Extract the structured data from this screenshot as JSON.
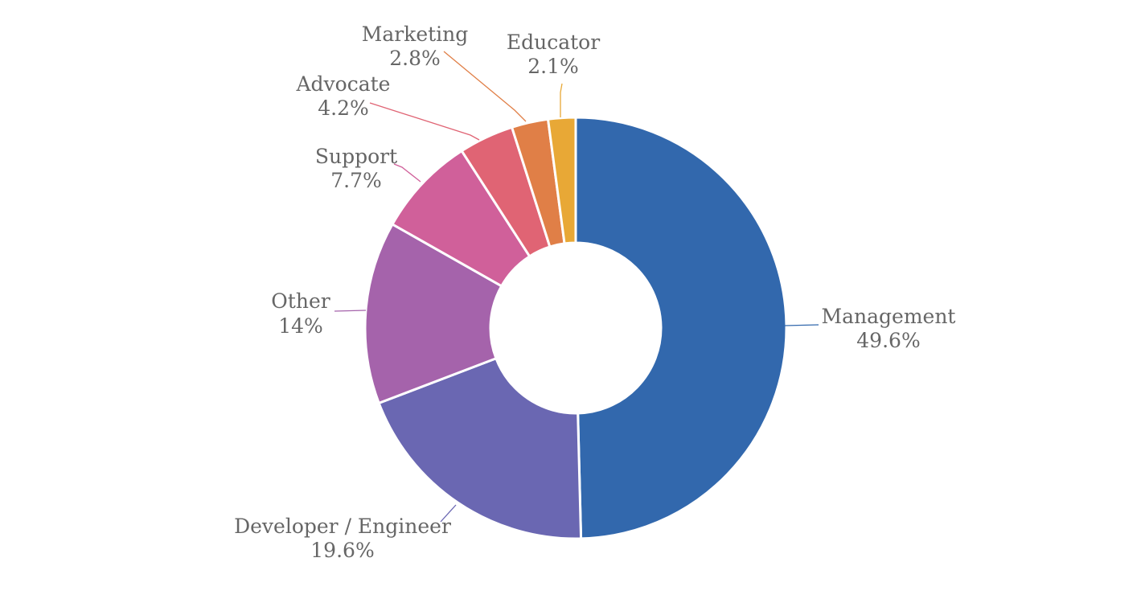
{
  "chart_data": {
    "type": "pie",
    "variant": "donut",
    "title": "",
    "categories": [
      "Management",
      "Developer / Engineer",
      "Other",
      "Support",
      "Advocate",
      "Marketing",
      "Educator"
    ],
    "values": [
      49.6,
      19.6,
      14,
      7.7,
      4.2,
      2.8,
      2.1
    ],
    "value_labels": [
      "49.6%",
      "19.6%",
      "14%",
      "7.7%",
      "4.2%",
      "2.8%",
      "2.1%"
    ],
    "colors": [
      "#3268ad",
      "#6a67b2",
      "#a563ab",
      "#d0609a",
      "#e06474",
      "#e07f47",
      "#e8a836"
    ]
  }
}
